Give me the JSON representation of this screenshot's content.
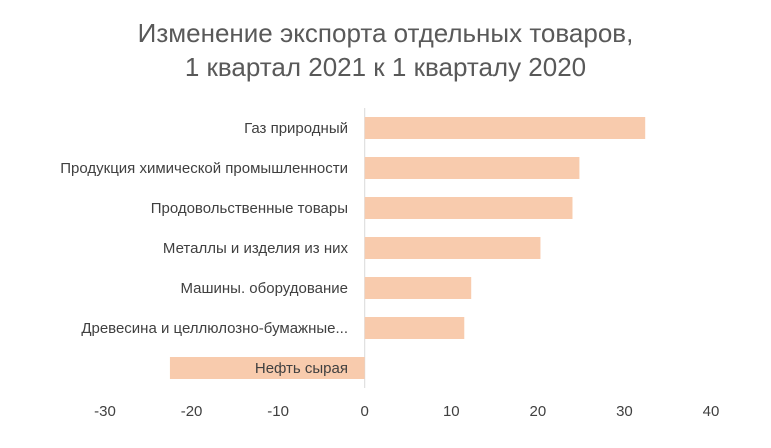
{
  "chart_data": {
    "type": "bar",
    "orientation": "horizontal",
    "title_line1": "Изменение экспорта отдельных товаров,",
    "title_line2": "1 квартал 2021 к 1 кварталу 2020",
    "categories": [
      "Газ природный",
      "Продукция химической промышленности",
      "Продовольственные товары",
      "Металлы и изделия из них",
      "Машины. оборудование",
      "Древесина и целлюлозно-бумажные...",
      "Нефть сырая"
    ],
    "values": [
      32.4,
      24.8,
      24.0,
      20.3,
      12.3,
      11.5,
      -22.5
    ],
    "xlim": [
      -30,
      40
    ],
    "xticks": [
      "-30",
      "-20",
      "-10",
      "0",
      "10",
      "20",
      "30",
      "40"
    ],
    "bar_color": "#f8cbad",
    "grid": false,
    "legend": "none"
  }
}
